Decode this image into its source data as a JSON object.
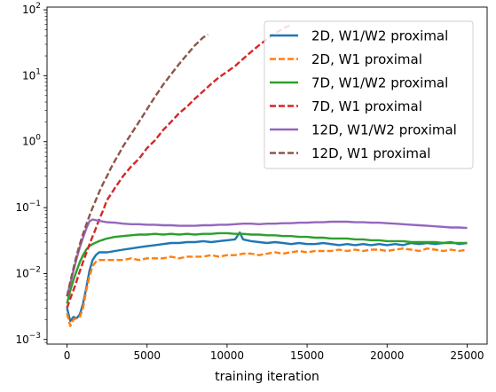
{
  "chart_data": {
    "type": "line",
    "title": "",
    "xlabel": "training iteration",
    "ylabel": "",
    "xlim": [
      -1250,
      26250
    ],
    "ylim": [
      0.00085,
      110
    ],
    "yscale": "log",
    "grid": false,
    "legend_position": "top-right",
    "x_ticks": [
      0,
      5000,
      10000,
      15000,
      20000,
      25000
    ],
    "x_tick_labels": [
      "0",
      "5000",
      "10000",
      "15000",
      "20000",
      "25000"
    ],
    "y_ticks": [
      0.001,
      0.01,
      0.1,
      1,
      10,
      100
    ],
    "y_tick_labels": [
      {
        "base": "10",
        "exp": "−3"
      },
      {
        "base": "10",
        "exp": "−2"
      },
      {
        "base": "10",
        "exp": "−1"
      },
      {
        "base": "10",
        "exp": "0"
      },
      {
        "base": "10",
        "exp": "1"
      },
      {
        "base": "10",
        "exp": "2"
      }
    ],
    "series": [
      {
        "name": "2D, W1/W2 proximal",
        "color": "#1f77b4",
        "dash": "solid",
        "x": [
          0,
          200,
          400,
          600,
          800,
          1000,
          1200,
          1400,
          1600,
          1800,
          2000,
          2500,
          3000,
          3500,
          4000,
          4500,
          5000,
          5500,
          6000,
          6500,
          7000,
          7500,
          8000,
          8500,
          9000,
          9500,
          10000,
          10500,
          10800,
          11000,
          11500,
          12000,
          12500,
          13000,
          13500,
          14000,
          14500,
          15000,
          15500,
          16000,
          16500,
          17000,
          17500,
          18000,
          18500,
          19000,
          19500,
          20000,
          20500,
          21000,
          21500,
          22000,
          22500,
          23000,
          23500,
          24000,
          24500,
          25000
        ],
        "y": [
          0.003,
          0.0019,
          0.0022,
          0.0021,
          0.0024,
          0.0035,
          0.006,
          0.011,
          0.016,
          0.019,
          0.021,
          0.021,
          0.022,
          0.023,
          0.024,
          0.025,
          0.026,
          0.027,
          0.028,
          0.029,
          0.029,
          0.03,
          0.03,
          0.031,
          0.03,
          0.031,
          0.032,
          0.033,
          0.042,
          0.033,
          0.031,
          0.03,
          0.029,
          0.03,
          0.029,
          0.028,
          0.029,
          0.028,
          0.028,
          0.029,
          0.028,
          0.027,
          0.028,
          0.027,
          0.028,
          0.027,
          0.028,
          0.027,
          0.028,
          0.027,
          0.029,
          0.028,
          0.029,
          0.028,
          0.029,
          0.03,
          0.028,
          0.029
        ]
      },
      {
        "name": "2D, W1 proximal",
        "color": "#ff7f0e",
        "dash": "dashed",
        "x": [
          0,
          200,
          400,
          600,
          800,
          1000,
          1200,
          1400,
          1600,
          1800,
          2000,
          2500,
          3000,
          3500,
          4000,
          4500,
          5000,
          5500,
          6000,
          6500,
          7000,
          7500,
          8000,
          8500,
          9000,
          9500,
          10000,
          10500,
          11000,
          11500,
          12000,
          12500,
          13000,
          13500,
          14000,
          14500,
          15000,
          15500,
          16000,
          16500,
          17000,
          17500,
          18000,
          18500,
          19000,
          19500,
          20000,
          20500,
          21000,
          21500,
          22000,
          22500,
          23000,
          23500,
          24000,
          24500,
          25000
        ],
        "y": [
          0.0025,
          0.0016,
          0.002,
          0.0021,
          0.0022,
          0.003,
          0.0055,
          0.009,
          0.013,
          0.015,
          0.016,
          0.016,
          0.016,
          0.016,
          0.017,
          0.016,
          0.017,
          0.017,
          0.017,
          0.018,
          0.017,
          0.018,
          0.018,
          0.018,
          0.019,
          0.018,
          0.019,
          0.019,
          0.02,
          0.02,
          0.019,
          0.02,
          0.021,
          0.02,
          0.021,
          0.022,
          0.021,
          0.022,
          0.022,
          0.022,
          0.023,
          0.022,
          0.023,
          0.022,
          0.023,
          0.023,
          0.022,
          0.023,
          0.024,
          0.023,
          0.022,
          0.024,
          0.023,
          0.022,
          0.023,
          0.022,
          0.023
        ]
      },
      {
        "name": "7D, W1/W2 proximal",
        "color": "#2ca02c",
        "dash": "solid",
        "x": [
          0,
          200,
          400,
          600,
          800,
          1000,
          1200,
          1400,
          1600,
          2000,
          2500,
          3000,
          3500,
          4000,
          4500,
          5000,
          5500,
          6000,
          6500,
          7000,
          7500,
          8000,
          8500,
          9000,
          9500,
          10000,
          10500,
          11000,
          11500,
          12000,
          12500,
          13000,
          13500,
          14000,
          14500,
          15000,
          15500,
          16000,
          16500,
          17000,
          17500,
          18000,
          18500,
          19000,
          19500,
          20000,
          20500,
          21000,
          21500,
          22000,
          22500,
          23000,
          23500,
          24000,
          24500,
          25000
        ],
        "y": [
          0.0035,
          0.0055,
          0.008,
          0.011,
          0.015,
          0.019,
          0.023,
          0.026,
          0.028,
          0.031,
          0.034,
          0.036,
          0.037,
          0.038,
          0.039,
          0.039,
          0.04,
          0.039,
          0.04,
          0.039,
          0.04,
          0.039,
          0.04,
          0.04,
          0.041,
          0.041,
          0.04,
          0.04,
          0.039,
          0.039,
          0.038,
          0.038,
          0.037,
          0.037,
          0.036,
          0.036,
          0.035,
          0.035,
          0.034,
          0.034,
          0.034,
          0.033,
          0.033,
          0.032,
          0.032,
          0.031,
          0.031,
          0.031,
          0.03,
          0.03,
          0.03,
          0.03,
          0.029,
          0.029,
          0.029,
          0.029
        ]
      },
      {
        "name": "7D, W1 proximal",
        "color": "#d62728",
        "dash": "dashed",
        "x": [
          0,
          250,
          500,
          750,
          1000,
          1250,
          1500,
          1750,
          2000,
          2250,
          2500,
          2750,
          3000,
          3500,
          4000,
          4500,
          5000,
          5500,
          6000,
          6500,
          7000,
          7500,
          8000,
          8500,
          9000,
          9500,
          10000,
          10500,
          11000,
          11500,
          12000,
          12500,
          13000,
          13500,
          14000
        ],
        "y": [
          0.003,
          0.0045,
          0.0065,
          0.01,
          0.015,
          0.022,
          0.032,
          0.045,
          0.065,
          0.09,
          0.13,
          0.16,
          0.2,
          0.3,
          0.42,
          0.55,
          0.8,
          1.05,
          1.5,
          2.0,
          2.7,
          3.4,
          4.5,
          5.8,
          7.5,
          9.5,
          11.5,
          14,
          18,
          23,
          29,
          36,
          44,
          52,
          60
        ]
      },
      {
        "name": "12D, W1/W2 proximal",
        "color": "#9467bd",
        "dash": "solid",
        "x": [
          0,
          200,
          400,
          600,
          800,
          1000,
          1200,
          1400,
          1600,
          2000,
          2500,
          3000,
          3500,
          4000,
          4500,
          5000,
          5500,
          6000,
          6500,
          7000,
          7500,
          8000,
          8500,
          9000,
          9500,
          10000,
          10500,
          11000,
          11500,
          12000,
          12500,
          13000,
          13500,
          14000,
          14500,
          15000,
          15500,
          16000,
          16500,
          17000,
          17500,
          18000,
          18500,
          19000,
          19500,
          20000,
          20500,
          21000,
          21500,
          22000,
          22500,
          23000,
          23500,
          24000,
          24500,
          25000
        ],
        "y": [
          0.0045,
          0.007,
          0.011,
          0.017,
          0.025,
          0.035,
          0.048,
          0.062,
          0.066,
          0.063,
          0.06,
          0.059,
          0.057,
          0.056,
          0.056,
          0.055,
          0.055,
          0.054,
          0.054,
          0.053,
          0.053,
          0.053,
          0.054,
          0.054,
          0.055,
          0.055,
          0.056,
          0.057,
          0.057,
          0.056,
          0.057,
          0.057,
          0.058,
          0.058,
          0.059,
          0.059,
          0.06,
          0.06,
          0.061,
          0.061,
          0.061,
          0.06,
          0.06,
          0.059,
          0.059,
          0.058,
          0.057,
          0.056,
          0.055,
          0.054,
          0.053,
          0.052,
          0.051,
          0.05,
          0.05,
          0.049
        ]
      },
      {
        "name": "12D, W1 proximal",
        "color": "#8c564b",
        "dash": "dashed",
        "x": [
          0,
          200,
          400,
          600,
          800,
          1000,
          1200,
          1400,
          1600,
          1800,
          2000,
          2250,
          2500,
          2750,
          3000,
          3250,
          3500,
          3750,
          4000,
          4500,
          5000,
          5500,
          6000,
          6500,
          7000,
          7500,
          8000,
          8500,
          8800
        ],
        "y": [
          0.0045,
          0.0075,
          0.012,
          0.019,
          0.028,
          0.04,
          0.055,
          0.075,
          0.1,
          0.13,
          0.17,
          0.23,
          0.3,
          0.4,
          0.52,
          0.66,
          0.85,
          1.05,
          1.3,
          2.0,
          3.1,
          4.8,
          7.3,
          10.5,
          15,
          21,
          29,
          38,
          42
        ]
      }
    ]
  }
}
